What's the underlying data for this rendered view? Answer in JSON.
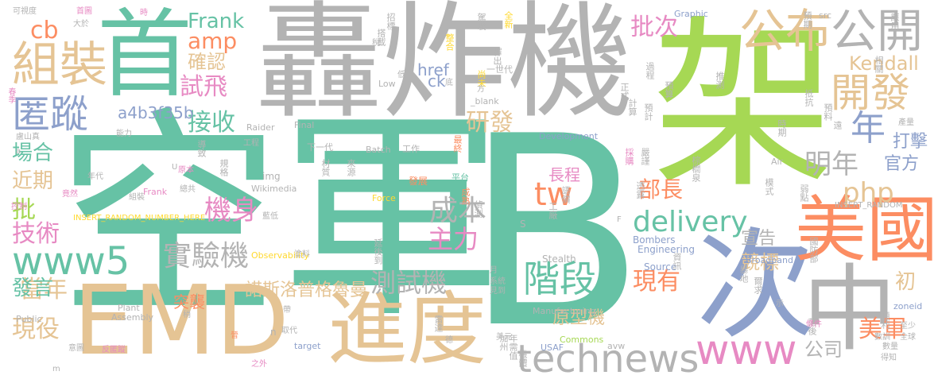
{
  "colors": {
    "teal": "#66c2a5",
    "orange": "#fc8d62",
    "blue": "#8da0cb",
    "pink": "#e78ac3",
    "green": "#a6d854",
    "yellow": "#ffd92f",
    "tan": "#e5c494",
    "gray": "#b3b3b3"
  },
  "words": [
    "空軍",
    "B",
    "架",
    "轟炸機",
    "次",
    "首",
    "EMD",
    "進度",
    "中",
    "美國",
    "公布",
    "公開",
    "組裝",
    "開發",
    "匿蹤",
    "technews",
    "階段",
    "www",
    "www5",
    "tw",
    "delivery",
    "年",
    "實驗機",
    "測試機",
    "成本",
    "主力",
    "機身",
    "現有",
    "php",
    "明年",
    "部長",
    "試飛",
    "批次",
    "研發",
    "接收",
    "技術",
    "當年",
    "現役",
    "美軍",
    "發言",
    "批",
    "場合",
    "近期",
    "cb",
    "amp",
    "Frank",
    "Kendall",
    "確認",
    "a4b3f35b",
    "諾斯洛普格魯曼",
    "原型機",
    "初",
    "打擊",
    "官方",
    "宣告",
    "競標",
    "公司",
    "長程",
    "突襲",
    "href",
    "ck",
    "Development",
    "Stealth",
    "Bombers",
    "Manufacturing",
    "Engineering",
    "Source",
    "Commons",
    "Wikimedia",
    "img",
    "Batch",
    "Force",
    "Air",
    "USAF",
    "Plant",
    "Assembly",
    "Public",
    "Raider",
    "Final",
    "Low",
    "Observability",
    "INSERT_RANDOM_NUMBER_HERE",
    "INSERT_RANDOM",
    "Graphic",
    "src",
    "_blank",
    "target",
    "Broadband",
    "zoneid",
    "avw",
    "Frank",
    "下一代",
    "一世代",
    "工作",
    "發展",
    "平台",
    "最終",
    "嚴謹",
    "預計",
    "採購",
    "透露",
    "棕櫚泉",
    "國防部",
    "整合",
    "來源",
    "材質",
    "規格",
    "導致",
    "延後到",
    "成熟",
    "偵測",
    "語價",
    "工廠",
    "加州",
    "年需值",
    "機體",
    "資訊",
    "模式",
    "爾求",
    "暴地",
    "順利",
    "落後",
    "弱點",
    "預期",
    "應用",
    "雷達",
    "全新",
    "駕駛",
    "招標",
    "搭載",
    "釋出",
    "尚未",
    "正式",
    "計算",
    "時期",
    "相關",
    "預算",
    "過程",
    "推測",
    "抵抗",
    "預料",
    "遠",
    "時",
    "首圖",
    "可視度",
    "大於",
    "盧山真",
    "春季",
    "竟然",
    "控制",
    "組裝",
    "總共",
    "年代",
    "工程",
    "能力",
    "原本",
    "藍低",
    "塗料",
    "意圖",
    "反匿蹤",
    "之外",
    "美元",
    "月",
    "系統",
    "見到",
    "取代",
    "稍",
    "數訓",
    "條件",
    "至少",
    "全球",
    "得知",
    "數量",
    "產量",
    "晉",
    "帶",
    "稅",
    "低",
    "底",
    "方",
    "示",
    "S",
    "n",
    "a",
    "U",
    "F",
    "m",
    "德",
    "器"
  ]
}
